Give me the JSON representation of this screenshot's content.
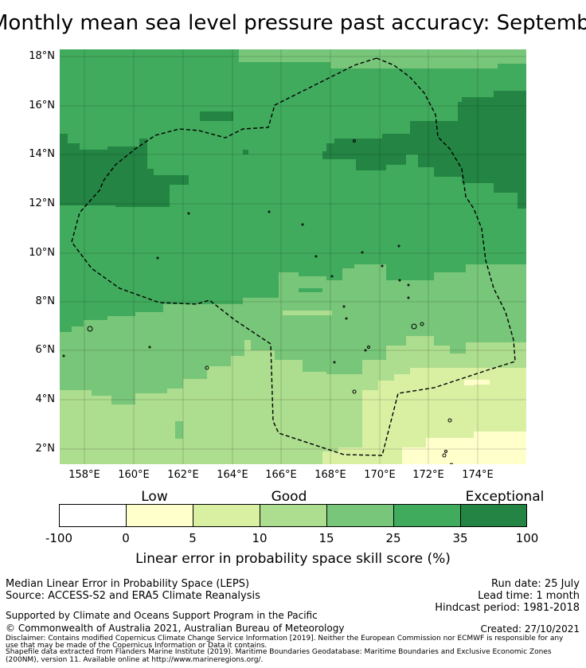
{
  "title": "Monthly mean sea level pressure past accuracy: September",
  "map": {
    "lon_range": [
      157,
      176
    ],
    "lat_range": [
      1.4,
      18.2
    ],
    "y_ticks": [
      "18°N",
      "16°N",
      "14°N",
      "12°N",
      "10°N",
      "8°N",
      "6°N",
      "4°N",
      "2°N"
    ],
    "x_ticks": [
      "158°E",
      "160°E",
      "162°E",
      "164°E",
      "166°E",
      "168°E",
      "170°E",
      "172°E",
      "174°E"
    ],
    "colors": {
      "exceptional": "#238443",
      "very_good": "#41ab5d",
      "good": "#78c679",
      "moderate": "#addd8e",
      "low": "#d9f0a3",
      "very_low": "#ffffcc",
      "none": "#ffffff"
    },
    "zone_boundary_style": "dashed black"
  },
  "colorbar": {
    "category_labels": [
      "Low",
      "Good",
      "Exceptional"
    ],
    "tick_labels": [
      "-100",
      "0",
      "5",
      "10",
      "15",
      "25",
      "35",
      "100"
    ],
    "segment_colors": [
      "#ffffff",
      "#ffffcc",
      "#d9f0a3",
      "#addd8e",
      "#78c679",
      "#41ab5d",
      "#238443"
    ],
    "axis_label": "Linear error in probability space skill score (%)"
  },
  "info": {
    "method": "Median Linear Error in Probability Space (LEPS)",
    "source": "Source: ACCESS-S2 and ERA5 Climate Reanalysis",
    "support": "Supported by Climate and Oceans Support Program in the Pacific",
    "copyright": "© Commonwealth of Australia 2021, Australian Bureau of Meteorology",
    "run_date": "Run date: 25 July",
    "lead_time": "Lead time: 1 month",
    "hindcast": "Hindcast period: 1981-2018",
    "created": "Created: 27/10/2021",
    "disclaimer_1": "Disclaimer: Contains modified Copernicus Climate Change Service Information [2019]. Neither the European Commission nor ECMWF is responsible for any",
    "disclaimer_2": "use that may be made of the Copernicus Information or Data it contains.",
    "shapefile_1": "Shapefile data extracted from Flanders Marine Institute (2019). Maritime Boundaries Geodatabase: Maritime Boundaries and Exclusive Economic Zones",
    "shapefile_2": "(200NM), version 11. Available online at http://www.marineregions.org/."
  }
}
